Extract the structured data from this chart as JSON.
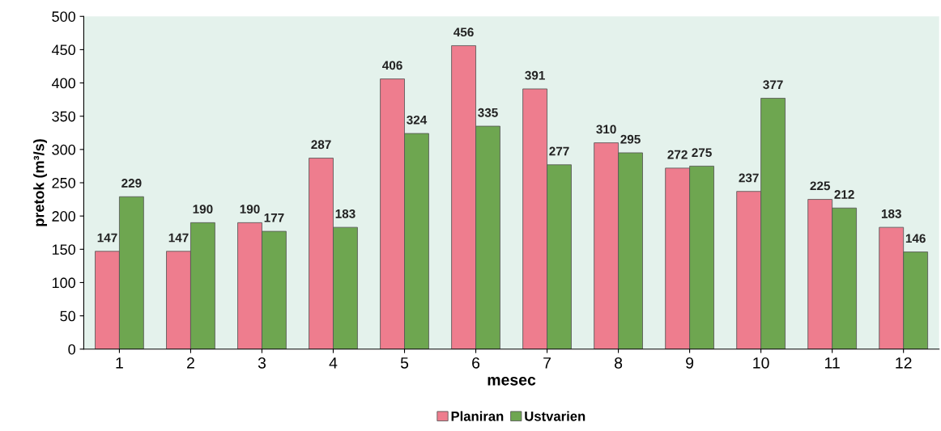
{
  "chart_data": {
    "type": "bar",
    "xlabel": "mesec",
    "ylabel": "pretok (m³/s)",
    "categories": [
      "1",
      "2",
      "3",
      "4",
      "5",
      "6",
      "7",
      "8",
      "9",
      "10",
      "11",
      "12"
    ],
    "series": [
      {
        "name": "Planiran",
        "color": "#ee7d8e",
        "values": [
          147,
          147,
          190,
          287,
          406,
          456,
          391,
          310,
          272,
          237,
          225,
          183
        ]
      },
      {
        "name": "Ustvarien",
        "color": "#6ea650",
        "values": [
          229,
          190,
          177,
          183,
          324,
          335,
          277,
          295,
          275,
          377,
          212,
          146
        ]
      }
    ],
    "ylim": [
      0,
      500
    ],
    "yticks": [
      0,
      50,
      100,
      150,
      200,
      250,
      300,
      350,
      400,
      450,
      500
    ],
    "data_labels": true,
    "grid": false,
    "legend": "bottom"
  }
}
